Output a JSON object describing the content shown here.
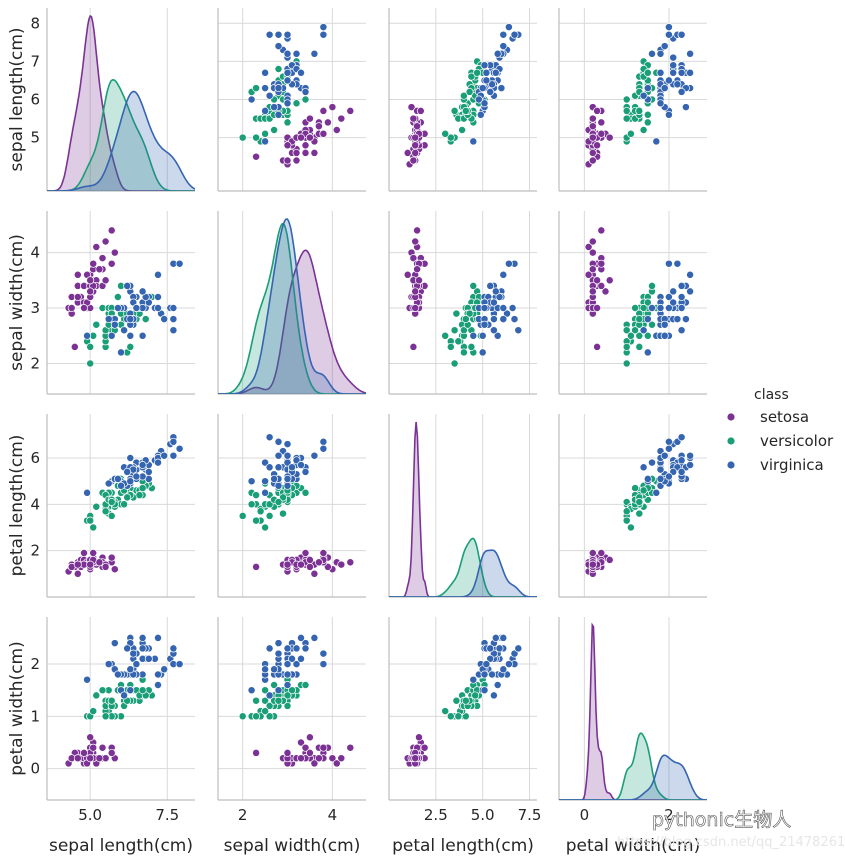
{
  "chart_data": {
    "type": "scatter",
    "subtype": "pairplot",
    "variables": [
      "sepal length(cm)",
      "sepal width(cm)",
      "petal length(cm)",
      "petal width(cm)"
    ],
    "axis_labels": {
      "x": [
        "sepal length(cm)",
        "sepal width(cm)",
        "petal length(cm)",
        "petal width(cm)"
      ],
      "y": [
        "sepal length(cm)",
        "sepal width(cm)",
        "petal length(cm)",
        "petal width(cm)"
      ]
    },
    "ranges": {
      "sepal length(cm)": [
        3.6,
        8.4
      ],
      "sepal width(cm)": [
        1.45,
        4.75
      ],
      "petal length(cm)": [
        0.0,
        7.9
      ],
      "petal width(cm)": [
        -0.6,
        2.9
      ]
    },
    "ticks": {
      "x": [
        [
          "5.0",
          "7.5"
        ],
        [
          "2",
          "4"
        ],
        [
          "2.5",
          "5.0",
          "7.5"
        ],
        [
          "0",
          "2"
        ]
      ],
      "y": [
        [
          "5",
          "6",
          "7",
          "8"
        ],
        [
          "2",
          "3",
          "4"
        ],
        [
          "2",
          "4",
          "6"
        ],
        [
          "0",
          "1",
          "2"
        ]
      ]
    },
    "tick_values": {
      "x": [
        [
          5.0,
          7.5
        ],
        [
          2,
          4
        ],
        [
          2.5,
          5.0,
          7.5
        ],
        [
          0,
          2
        ]
      ],
      "y": [
        [
          5,
          6,
          7,
          8
        ],
        [
          2,
          3,
          4
        ],
        [
          2,
          4,
          6
        ],
        [
          0,
          1,
          2
        ]
      ]
    },
    "diagonal": "kde",
    "grid": true,
    "legend": {
      "title": "class",
      "placement": "right",
      "entries": [
        "setosa",
        "versicolor",
        "virginica"
      ]
    },
    "colors": {
      "setosa": "#7b3294",
      "versicolor": "#1a9e77",
      "virginica": "#3565b0"
    },
    "series": [
      {
        "name": "setosa",
        "points": [
          [
            5.1,
            3.5,
            1.4,
            0.2
          ],
          [
            4.9,
            3.0,
            1.4,
            0.2
          ],
          [
            4.7,
            3.2,
            1.3,
            0.2
          ],
          [
            4.6,
            3.1,
            1.5,
            0.2
          ],
          [
            5.0,
            3.6,
            1.4,
            0.2
          ],
          [
            5.4,
            3.9,
            1.7,
            0.4
          ],
          [
            4.6,
            3.4,
            1.4,
            0.3
          ],
          [
            5.0,
            3.4,
            1.5,
            0.2
          ],
          [
            4.4,
            2.9,
            1.4,
            0.2
          ],
          [
            4.9,
            3.1,
            1.5,
            0.1
          ],
          [
            5.4,
            3.7,
            1.5,
            0.2
          ],
          [
            4.8,
            3.4,
            1.6,
            0.2
          ],
          [
            4.8,
            3.0,
            1.4,
            0.1
          ],
          [
            4.3,
            3.0,
            1.1,
            0.1
          ],
          [
            5.8,
            4.0,
            1.2,
            0.2
          ],
          [
            5.7,
            4.4,
            1.5,
            0.4
          ],
          [
            5.4,
            3.9,
            1.3,
            0.4
          ],
          [
            5.1,
            3.5,
            1.4,
            0.3
          ],
          [
            5.7,
            3.8,
            1.7,
            0.3
          ],
          [
            5.1,
            3.8,
            1.5,
            0.3
          ],
          [
            5.4,
            3.4,
            1.7,
            0.2
          ],
          [
            5.1,
            3.7,
            1.5,
            0.4
          ],
          [
            4.6,
            3.6,
            1.0,
            0.2
          ],
          [
            5.1,
            3.3,
            1.7,
            0.5
          ],
          [
            4.8,
            3.4,
            1.9,
            0.2
          ],
          [
            5.0,
            3.0,
            1.6,
            0.2
          ],
          [
            5.0,
            3.4,
            1.6,
            0.4
          ],
          [
            5.2,
            3.5,
            1.5,
            0.2
          ],
          [
            5.2,
            3.4,
            1.4,
            0.2
          ],
          [
            4.7,
            3.2,
            1.6,
            0.2
          ],
          [
            4.8,
            3.1,
            1.6,
            0.2
          ],
          [
            5.4,
            3.4,
            1.5,
            0.4
          ],
          [
            5.2,
            4.1,
            1.5,
            0.1
          ],
          [
            5.5,
            4.2,
            1.4,
            0.2
          ],
          [
            4.9,
            3.1,
            1.5,
            0.2
          ],
          [
            5.0,
            3.2,
            1.2,
            0.2
          ],
          [
            5.5,
            3.5,
            1.3,
            0.2
          ],
          [
            4.9,
            3.6,
            1.4,
            0.1
          ],
          [
            4.4,
            3.0,
            1.3,
            0.2
          ],
          [
            5.1,
            3.4,
            1.5,
            0.2
          ],
          [
            5.0,
            3.5,
            1.3,
            0.3
          ],
          [
            4.5,
            2.3,
            1.3,
            0.3
          ],
          [
            4.4,
            3.2,
            1.3,
            0.2
          ],
          [
            5.0,
            3.5,
            1.6,
            0.6
          ],
          [
            5.1,
            3.8,
            1.9,
            0.4
          ],
          [
            4.8,
            3.0,
            1.4,
            0.3
          ],
          [
            5.1,
            3.8,
            1.6,
            0.2
          ],
          [
            4.6,
            3.2,
            1.4,
            0.2
          ],
          [
            5.3,
            3.7,
            1.5,
            0.2
          ],
          [
            5.0,
            3.3,
            1.4,
            0.2
          ]
        ]
      },
      {
        "name": "versicolor",
        "points": [
          [
            7.0,
            3.2,
            4.7,
            1.4
          ],
          [
            6.4,
            3.2,
            4.5,
            1.5
          ],
          [
            6.9,
            3.1,
            4.9,
            1.5
          ],
          [
            5.5,
            2.3,
            4.0,
            1.3
          ],
          [
            6.5,
            2.8,
            4.6,
            1.5
          ],
          [
            5.7,
            2.8,
            4.5,
            1.3
          ],
          [
            6.3,
            3.3,
            4.7,
            1.6
          ],
          [
            4.9,
            2.4,
            3.3,
            1.0
          ],
          [
            6.6,
            2.9,
            4.6,
            1.3
          ],
          [
            5.2,
            2.7,
            3.9,
            1.4
          ],
          [
            5.0,
            2.0,
            3.5,
            1.0
          ],
          [
            5.9,
            3.0,
            4.2,
            1.5
          ],
          [
            6.0,
            2.2,
            4.0,
            1.0
          ],
          [
            6.1,
            2.9,
            4.7,
            1.4
          ],
          [
            5.6,
            2.9,
            3.6,
            1.3
          ],
          [
            6.7,
            3.1,
            4.4,
            1.4
          ],
          [
            5.6,
            3.0,
            4.5,
            1.5
          ],
          [
            5.8,
            2.7,
            4.1,
            1.0
          ],
          [
            6.2,
            2.2,
            4.5,
            1.5
          ],
          [
            5.6,
            2.5,
            3.9,
            1.1
          ],
          [
            5.9,
            3.2,
            4.8,
            1.8
          ],
          [
            6.1,
            2.8,
            4.0,
            1.3
          ],
          [
            6.3,
            2.5,
            4.9,
            1.5
          ],
          [
            6.1,
            2.8,
            4.7,
            1.2
          ],
          [
            6.4,
            2.9,
            4.3,
            1.3
          ],
          [
            6.6,
            3.0,
            4.4,
            1.4
          ],
          [
            6.8,
            2.8,
            4.8,
            1.4
          ],
          [
            6.7,
            3.0,
            5.0,
            1.7
          ],
          [
            6.0,
            2.9,
            4.5,
            1.5
          ],
          [
            5.7,
            2.6,
            3.5,
            1.0
          ],
          [
            5.5,
            2.4,
            3.8,
            1.1
          ],
          [
            5.5,
            2.4,
            3.7,
            1.0
          ],
          [
            5.8,
            2.7,
            3.9,
            1.2
          ],
          [
            6.0,
            2.7,
            5.1,
            1.6
          ],
          [
            5.4,
            3.0,
            4.5,
            1.5
          ],
          [
            6.0,
            3.4,
            4.5,
            1.6
          ],
          [
            6.7,
            3.1,
            4.7,
            1.5
          ],
          [
            6.3,
            2.3,
            4.4,
            1.3
          ],
          [
            5.6,
            3.0,
            4.1,
            1.3
          ],
          [
            5.5,
            2.5,
            4.0,
            1.3
          ],
          [
            5.5,
            2.6,
            4.4,
            1.2
          ],
          [
            6.1,
            3.0,
            4.6,
            1.4
          ],
          [
            5.8,
            2.6,
            4.0,
            1.2
          ],
          [
            5.0,
            2.3,
            3.3,
            1.0
          ],
          [
            5.6,
            2.7,
            4.2,
            1.3
          ],
          [
            5.7,
            3.0,
            4.2,
            1.2
          ],
          [
            5.7,
            2.9,
            4.2,
            1.3
          ],
          [
            6.2,
            2.9,
            4.3,
            1.3
          ],
          [
            5.1,
            2.5,
            3.0,
            1.1
          ],
          [
            5.7,
            2.8,
            4.1,
            1.3
          ]
        ]
      },
      {
        "name": "virginica",
        "points": [
          [
            6.3,
            3.3,
            6.0,
            2.5
          ],
          [
            5.8,
            2.7,
            5.1,
            1.9
          ],
          [
            7.1,
            3.0,
            5.9,
            2.1
          ],
          [
            6.3,
            2.9,
            5.6,
            1.8
          ],
          [
            6.5,
            3.0,
            5.8,
            2.2
          ],
          [
            7.6,
            3.0,
            6.6,
            2.1
          ],
          [
            4.9,
            2.5,
            4.5,
            1.7
          ],
          [
            7.3,
            2.9,
            6.3,
            1.8
          ],
          [
            6.7,
            2.5,
            5.8,
            1.8
          ],
          [
            7.2,
            3.6,
            6.1,
            2.5
          ],
          [
            6.5,
            3.2,
            5.1,
            2.0
          ],
          [
            6.4,
            2.7,
            5.3,
            1.9
          ],
          [
            6.8,
            3.0,
            5.5,
            2.1
          ],
          [
            5.7,
            2.5,
            5.0,
            2.0
          ],
          [
            5.8,
            2.8,
            5.1,
            2.4
          ],
          [
            6.4,
            3.2,
            5.3,
            2.3
          ],
          [
            6.5,
            3.0,
            5.5,
            1.8
          ],
          [
            7.7,
            3.8,
            6.7,
            2.2
          ],
          [
            7.7,
            2.6,
            6.9,
            2.3
          ],
          [
            6.0,
            2.2,
            5.0,
            1.5
          ],
          [
            6.9,
            3.2,
            5.7,
            2.3
          ],
          [
            5.6,
            2.8,
            4.9,
            2.0
          ],
          [
            7.7,
            2.8,
            6.7,
            2.0
          ],
          [
            6.3,
            2.7,
            4.9,
            1.8
          ],
          [
            6.7,
            3.3,
            5.7,
            2.1
          ],
          [
            7.2,
            3.2,
            6.0,
            1.8
          ],
          [
            6.2,
            2.8,
            4.8,
            1.8
          ],
          [
            6.1,
            3.0,
            4.9,
            1.8
          ],
          [
            6.4,
            2.8,
            5.6,
            2.1
          ],
          [
            7.2,
            3.0,
            5.8,
            1.6
          ],
          [
            7.4,
            2.8,
            6.1,
            1.9
          ],
          [
            7.9,
            3.8,
            6.4,
            2.0
          ],
          [
            6.4,
            2.8,
            5.6,
            2.2
          ],
          [
            6.3,
            2.8,
            5.1,
            1.5
          ],
          [
            6.1,
            2.6,
            5.6,
            1.4
          ],
          [
            7.7,
            3.0,
            6.1,
            2.3
          ],
          [
            6.3,
            3.4,
            5.6,
            2.4
          ],
          [
            6.4,
            3.1,
            5.5,
            1.8
          ],
          [
            6.0,
            3.0,
            4.8,
            1.8
          ],
          [
            6.9,
            3.1,
            5.4,
            2.1
          ],
          [
            6.7,
            3.1,
            5.6,
            2.4
          ],
          [
            6.9,
            3.1,
            5.1,
            2.3
          ],
          [
            5.8,
            2.7,
            5.1,
            1.9
          ],
          [
            6.8,
            3.2,
            5.9,
            2.3
          ],
          [
            6.7,
            3.3,
            5.7,
            2.5
          ],
          [
            6.7,
            3.0,
            5.2,
            2.3
          ],
          [
            6.3,
            2.5,
            5.0,
            1.9
          ],
          [
            6.5,
            3.0,
            5.2,
            2.0
          ],
          [
            6.2,
            3.4,
            5.4,
            2.3
          ],
          [
            5.9,
            3.0,
            5.1,
            1.8
          ]
        ]
      }
    ]
  },
  "watermark": {
    "main": "pythonic生物人",
    "sub": "https://blog.csdn.net/qq_21478261"
  }
}
